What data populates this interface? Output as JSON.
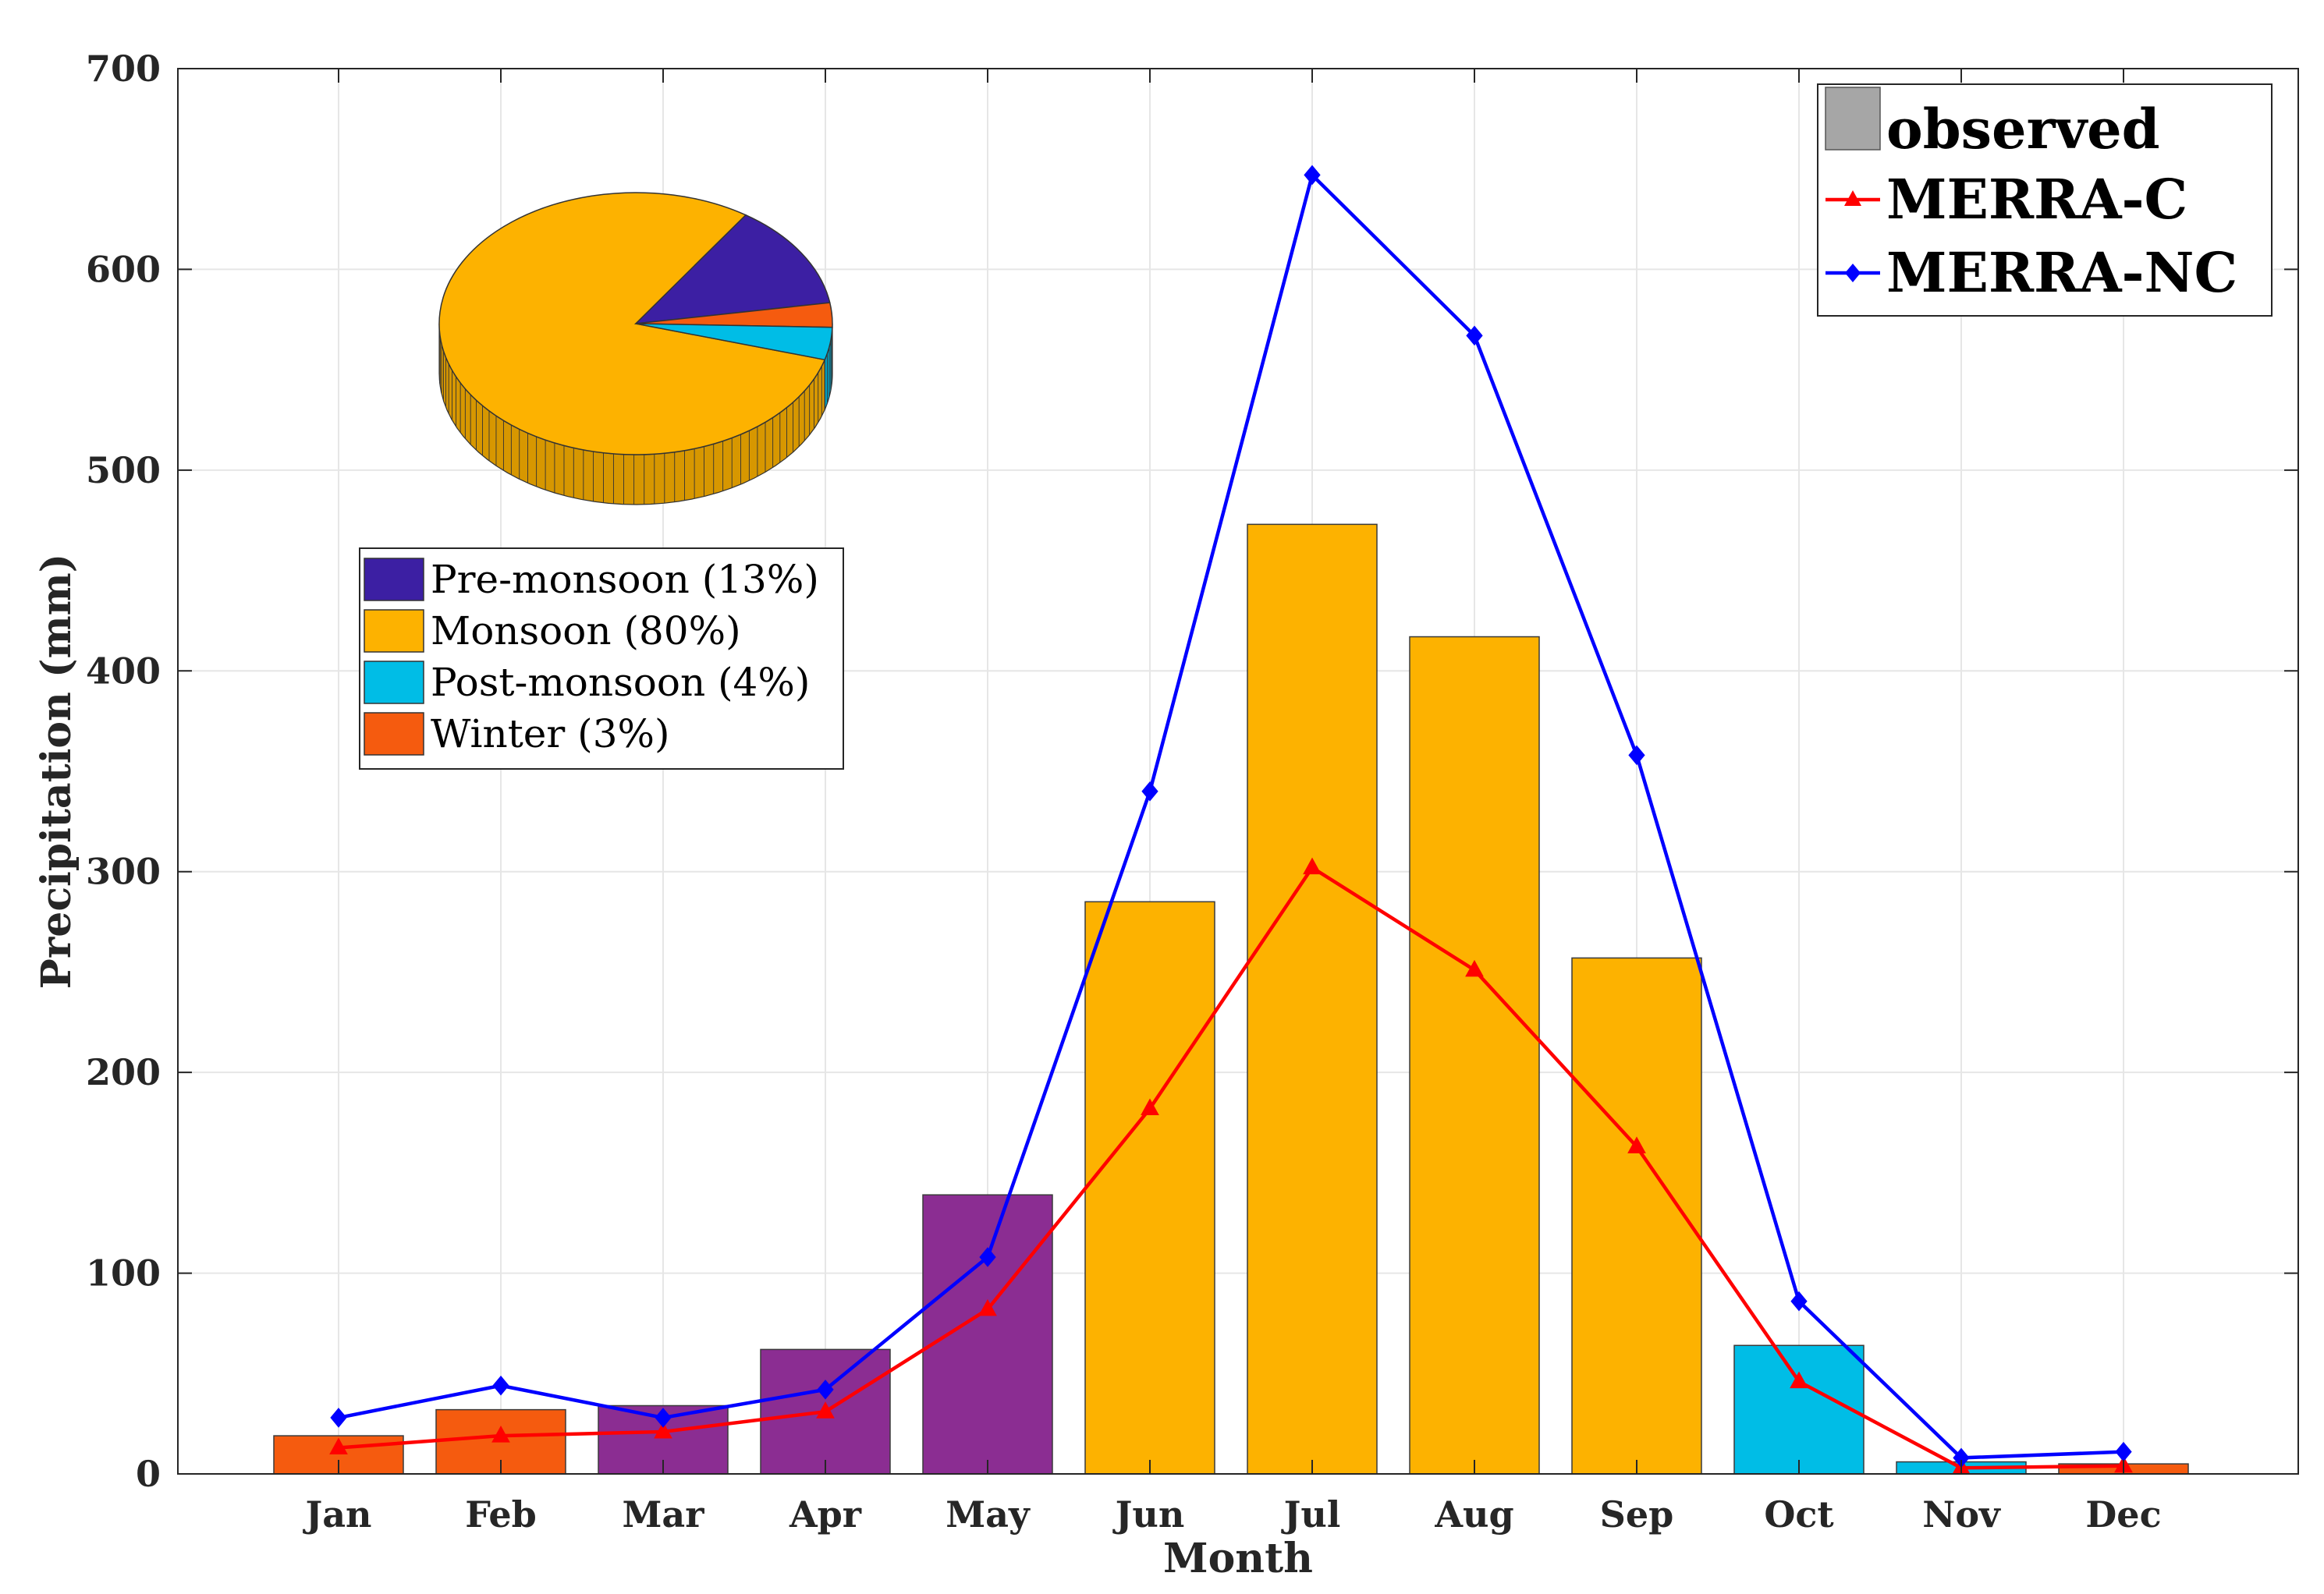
{
  "chart_data": {
    "type": "bar",
    "xlabel": "Month",
    "ylabel": "Precipitation (mm)",
    "ylim": [
      0,
      700
    ],
    "yticks": [
      0,
      100,
      200,
      300,
      400,
      500,
      600,
      700
    ],
    "grid": true,
    "categories": [
      "Jan",
      "Feb",
      "Mar",
      "Apr",
      "May",
      "Jun",
      "Jul",
      "Aug",
      "Sep",
      "Oct",
      "Nov",
      "Dec"
    ],
    "series": [
      {
        "name": "observed",
        "kind": "bar",
        "legend_color": "#a6a6a6",
        "values": [
          19,
          32,
          34,
          62,
          139,
          285,
          473,
          417,
          257,
          64,
          6,
          5
        ],
        "colors": [
          "#f55b0f",
          "#f55b0f",
          "#8b2d92",
          "#8b2d92",
          "#8b2d92",
          "#fdb200",
          "#fdb200",
          "#fdb200",
          "#fdb200",
          "#00bde6",
          "#00bde6",
          "#f55b0f"
        ]
      },
      {
        "name": "MERRA-C",
        "kind": "line",
        "color": "#ff0000",
        "marker": "triangle",
        "values": [
          13,
          19,
          21,
          31,
          82,
          182,
          302,
          251,
          163,
          46,
          3,
          4
        ]
      },
      {
        "name": "MERRA-NC",
        "kind": "line",
        "color": "#0000ff",
        "marker": "diamond",
        "values": [
          28,
          44,
          28,
          42,
          108,
          340,
          647,
          567,
          358,
          86,
          8,
          11
        ]
      }
    ],
    "legend_location": "top-right",
    "inset_pie": {
      "type": "pie",
      "legend_location": "upper-left",
      "slices": [
        {
          "label": "Pre-monsoon (13%)",
          "value": 13,
          "color": "#3c1fa3"
        },
        {
          "label": "Monsoon (80%)",
          "value": 80,
          "color": "#fdb200"
        },
        {
          "label": "Post-monsoon (4%)",
          "value": 4,
          "color": "#00bde6"
        },
        {
          "label": "Winter (3%)",
          "value": 3,
          "color": "#f55b0f"
        }
      ]
    }
  }
}
